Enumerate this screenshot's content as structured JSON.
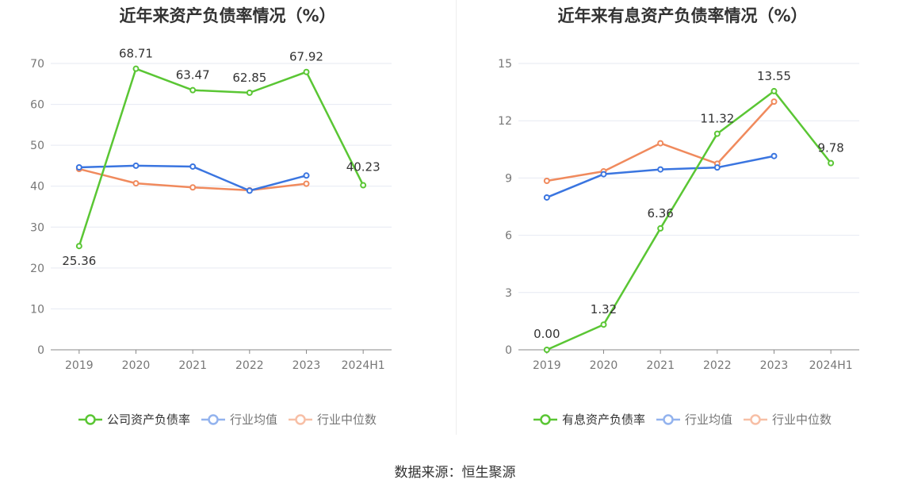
{
  "source": "数据来源：恒生聚源",
  "chart_data": [
    {
      "type": "line",
      "title": "近年来资产负债率情况（%）",
      "categories": [
        "2019",
        "2020",
        "2021",
        "2022",
        "2023",
        "2024H1"
      ],
      "ylim": [
        0,
        70
      ],
      "yticks": [
        0,
        10,
        20,
        30,
        40,
        50,
        60,
        70
      ],
      "grid": true,
      "legend_position": "bottom",
      "series": [
        {
          "name": "公司资产负债率",
          "color": "#5ac634",
          "values": [
            25.36,
            68.71,
            63.47,
            62.85,
            67.92,
            40.23
          ],
          "labels": [
            "25.36",
            "68.71",
            "63.47",
            "62.85",
            "67.92",
            "40.23"
          ]
        },
        {
          "name": "行业均值",
          "color": "#3a75e0",
          "values": [
            44.6,
            45.0,
            44.8,
            38.9,
            42.6,
            null
          ],
          "labels": []
        },
        {
          "name": "行业中位数",
          "color": "#f08a5d",
          "values": [
            44.2,
            40.7,
            39.7,
            39.0,
            40.6,
            null
          ],
          "labels": []
        }
      ]
    },
    {
      "type": "line",
      "title": "近年来有息资产负债率情况（%）",
      "categories": [
        "2019",
        "2020",
        "2021",
        "2022",
        "2023",
        "2024H1"
      ],
      "ylim": [
        0,
        15
      ],
      "yticks": [
        0,
        3,
        6,
        9,
        12,
        15
      ],
      "grid": true,
      "legend_position": "bottom",
      "series": [
        {
          "name": "有息资产负债率",
          "color": "#5ac634",
          "values": [
            0.0,
            1.32,
            6.36,
            11.32,
            13.55,
            9.78
          ],
          "labels": [
            "0.00",
            "1.32",
            "6.36",
            "11.32",
            "13.55",
            "9.78"
          ]
        },
        {
          "name": "行业均值",
          "color": "#3a75e0",
          "values": [
            7.98,
            9.2,
            9.45,
            9.55,
            10.15,
            null
          ],
          "labels": []
        },
        {
          "name": "行业中位数",
          "color": "#f08a5d",
          "values": [
            8.85,
            9.35,
            10.82,
            9.75,
            13.0,
            null
          ],
          "labels": []
        }
      ]
    }
  ]
}
